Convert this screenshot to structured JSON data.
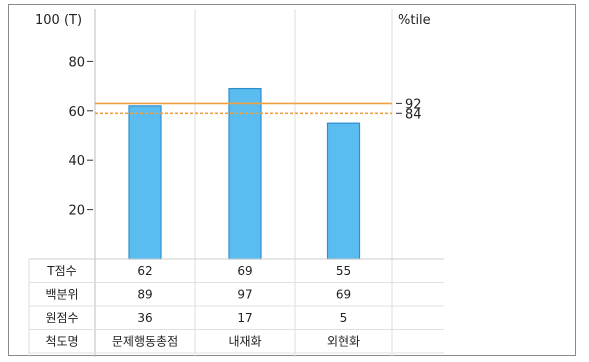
{
  "chart_data": {
    "type": "bar",
    "y_axis_label": "100 (T)",
    "right_axis_label": "%tile",
    "ylim": [
      0,
      100
    ],
    "y_ticks": [
      20,
      40,
      60,
      80
    ],
    "categories": [
      "문제행동총점",
      "내재화",
      "외현화"
    ],
    "series": [
      {
        "values": [
          62,
          69,
          55
        ]
      }
    ],
    "reference_lines": [
      {
        "label": "92",
        "value": 63,
        "style": "solid",
        "color": "#f0a040"
      },
      {
        "label": "84",
        "value": 59,
        "style": "dashed",
        "color": "#f0a040"
      }
    ],
    "grid": false,
    "bar_color": "#5bbcf0",
    "table": {
      "rows": [
        {
          "header": "T점수",
          "values": [
            "62",
            "69",
            "55"
          ]
        },
        {
          "header": "백분위",
          "values": [
            "89",
            "97",
            "69"
          ]
        },
        {
          "header": "원점수",
          "values": [
            "36",
            "17",
            "5"
          ]
        },
        {
          "header": "척도명",
          "values": [
            "문제행동총점",
            "내재화",
            "외현화"
          ]
        }
      ]
    }
  }
}
